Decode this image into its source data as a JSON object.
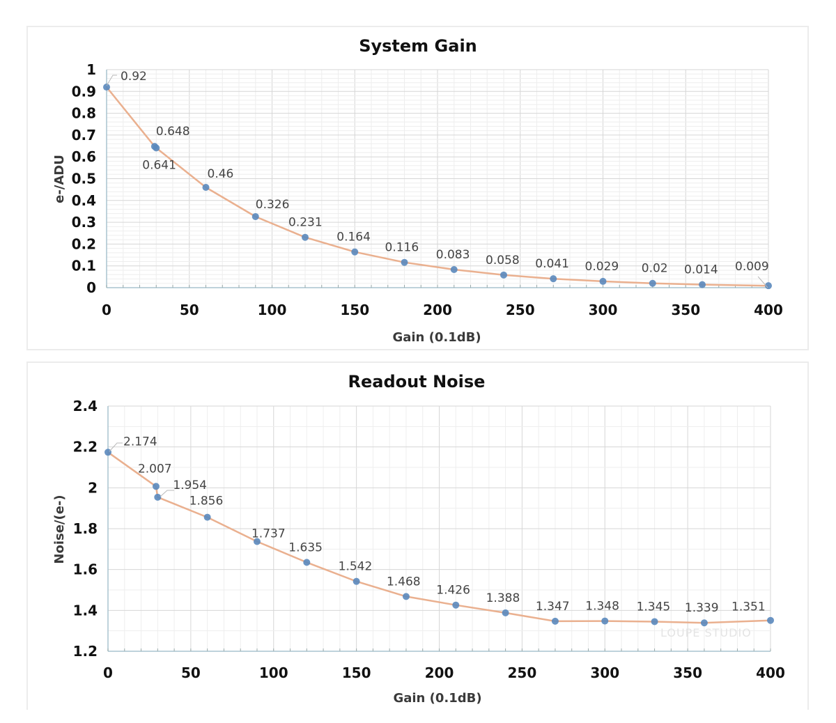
{
  "chart_data": [
    {
      "type": "line",
      "title": "System Gain",
      "xlabel": "Gain (0.1dB)",
      "ylabel": "e-/ADU",
      "xlim": [
        0,
        400
      ],
      "ylim": [
        0,
        1
      ],
      "xticks": [
        "0",
        "50",
        "100",
        "150",
        "200",
        "250",
        "300",
        "350",
        "400"
      ],
      "yticks": [
        "0",
        "0.1",
        "0.2",
        "0.3",
        "0.4",
        "0.5",
        "0.6",
        "0.7",
        "0.8",
        "0.9",
        "1"
      ],
      "grid": true,
      "legend": "none",
      "series": [
        {
          "name": "System Gain",
          "x": [
            0,
            29,
            30,
            60,
            90,
            120,
            150,
            180,
            210,
            240,
            270,
            300,
            330,
            360,
            400
          ],
          "y": [
            0.92,
            0.648,
            0.641,
            0.46,
            0.326,
            0.231,
            0.164,
            0.116,
            0.083,
            0.058,
            0.041,
            0.029,
            0.02,
            0.014,
            0.009
          ],
          "labels": [
            "0.92",
            "0.648",
            "0.641",
            "0.46",
            "0.326",
            "0.231",
            "0.164",
            "0.116",
            "0.083",
            "0.058",
            "0.041",
            "0.029",
            "0.02",
            "0.014",
            "0.009"
          ]
        }
      ]
    },
    {
      "type": "line",
      "title": "Readout Noise",
      "xlabel": "Gain (0.1dB)",
      "ylabel": "Noise/(e-)",
      "xlim": [
        0,
        400
      ],
      "ylim": [
        1.2,
        2.4
      ],
      "xticks": [
        "0",
        "50",
        "100",
        "150",
        "200",
        "250",
        "300",
        "350",
        "400"
      ],
      "yticks": [
        "1.2",
        "1.4",
        "1.6",
        "1.8",
        "2",
        "2.2",
        "2.4"
      ],
      "grid": true,
      "legend": "none",
      "series": [
        {
          "name": "Readout Noise",
          "x": [
            0,
            29,
            30,
            60,
            90,
            120,
            150,
            180,
            210,
            240,
            270,
            300,
            330,
            360,
            400
          ],
          "y": [
            2.174,
            2.007,
            1.954,
            1.856,
            1.737,
            1.635,
            1.542,
            1.468,
            1.426,
            1.388,
            1.347,
            1.348,
            1.345,
            1.339,
            1.351
          ],
          "labels": [
            "2.174",
            "2.007",
            "1.954",
            "1.856",
            "1.737",
            "1.635",
            "1.542",
            "1.468",
            "1.426",
            "1.388",
            "1.347",
            "1.348",
            "1.345",
            "1.339",
            "1.351"
          ]
        }
      ]
    }
  ],
  "colors": {
    "line": "#eab08f",
    "marker": "#5a88bd",
    "grid_major": "#d6d6d6",
    "grid_minor": "#eeeeee",
    "axis": "#a9c3cf"
  },
  "watermark": "LOUPE STUDIO"
}
